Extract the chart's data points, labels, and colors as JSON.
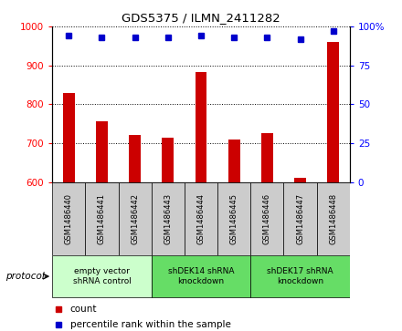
{
  "title": "GDS5375 / ILMN_2411282",
  "samples": [
    "GSM1486440",
    "GSM1486441",
    "GSM1486442",
    "GSM1486443",
    "GSM1486444",
    "GSM1486445",
    "GSM1486446",
    "GSM1486447",
    "GSM1486448"
  ],
  "counts": [
    830,
    757,
    720,
    715,
    882,
    710,
    726,
    610,
    960
  ],
  "percentiles": [
    94,
    93,
    93,
    93,
    94,
    93,
    93,
    92,
    97
  ],
  "ylim_left": [
    600,
    1000
  ],
  "ylim_right": [
    0,
    100
  ],
  "yticks_left": [
    600,
    700,
    800,
    900,
    1000
  ],
  "yticks_right": [
    0,
    25,
    50,
    75,
    100
  ],
  "bar_color": "#cc0000",
  "dot_color": "#0000cc",
  "bar_width": 0.35,
  "groups": [
    {
      "label": "empty vector\nshRNA control",
      "start": 0,
      "end": 3,
      "color": "#ccffcc"
    },
    {
      "label": "shDEK14 shRNA\nknockdown",
      "start": 3,
      "end": 6,
      "color": "#88ee88"
    },
    {
      "label": "shDEK17 shRNA\nknockdown",
      "start": 6,
      "end": 9,
      "color": "#88ee88"
    }
  ],
  "group1_color": "#ccffcc",
  "group2_color": "#66dd66",
  "label_box_color": "#cccccc",
  "protocol_label": "protocol",
  "legend_count_label": "count",
  "legend_pct_label": "percentile rank within the sample"
}
